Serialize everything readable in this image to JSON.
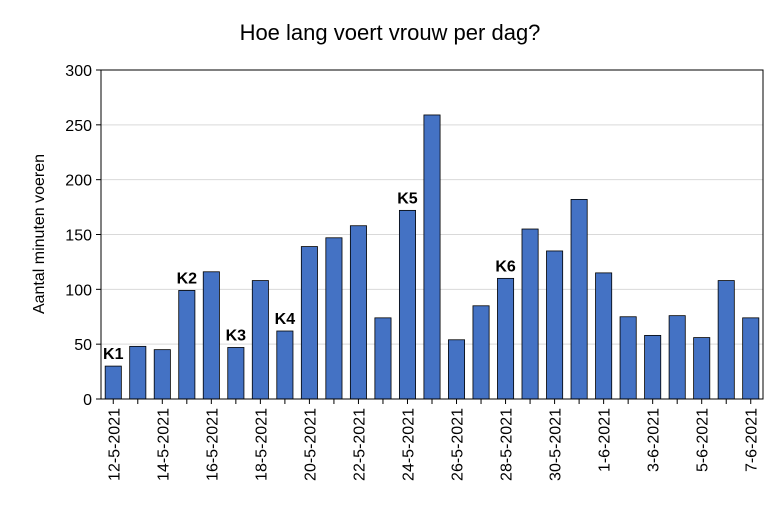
{
  "chart_data": {
    "type": "bar",
    "title": "Hoe lang voert vrouw per dag?",
    "xlabel": "",
    "ylabel": "Aantal minuten voeren",
    "ylim": [
      0,
      300
    ],
    "yticks": [
      0,
      50,
      100,
      150,
      200,
      250,
      300
    ],
    "grid": true,
    "categories": [
      "12-5-2021",
      "13-5-2021",
      "14-5-2021",
      "15-5-2021",
      "16-5-2021",
      "17-5-2021",
      "18-5-2021",
      "19-5-2021",
      "20-5-2021",
      "21-5-2021",
      "22-5-2021",
      "23-5-2021",
      "24-5-2021",
      "25-5-2021",
      "26-5-2021",
      "27-5-2021",
      "28-5-2021",
      "29-5-2021",
      "30-5-2021",
      "31-5-2021",
      "1-6-2021",
      "2-6-2021",
      "3-6-2021",
      "4-6-2021",
      "5-6-2021",
      "6-6-2021",
      "7-6-2021"
    ],
    "visible_tick_labels": [
      "12-5-2021",
      "14-5-2021",
      "16-5-2021",
      "18-5-2021",
      "20-5-2021",
      "22-5-2021",
      "24-5-2021",
      "26-5-2021",
      "28-5-2021",
      "30-5-2021",
      "1-6-2021",
      "3-6-2021",
      "5-6-2021",
      "7-6-2021"
    ],
    "values": [
      30,
      48,
      45,
      99,
      116,
      47,
      108,
      62,
      139,
      147,
      158,
      74,
      172,
      259,
      54,
      85,
      110,
      155,
      135,
      182,
      115,
      75,
      58,
      76,
      56,
      108,
      74
    ],
    "bar_color": "#4472c4",
    "annotations": [
      {
        "label": "K1",
        "category": "12-5-2021"
      },
      {
        "label": "K2",
        "category": "15-5-2021"
      },
      {
        "label": "K3",
        "category": "17-5-2021"
      },
      {
        "label": "K4",
        "category": "19-5-2021"
      },
      {
        "label": "K5",
        "category": "24-5-2021"
      },
      {
        "label": "K6",
        "category": "28-5-2021"
      }
    ]
  }
}
